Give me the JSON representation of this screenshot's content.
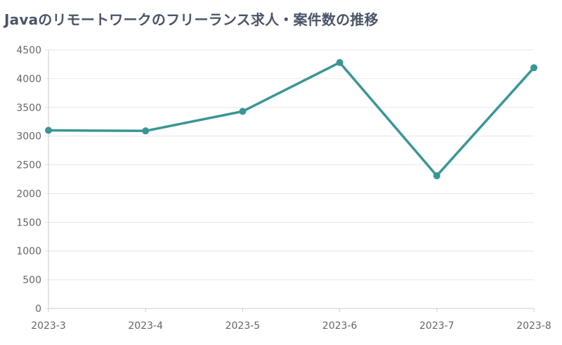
{
  "chart_data": {
    "type": "line",
    "title": "Javaのリモートワークのフリーランス求人・案件数の推移",
    "xlabel": "",
    "ylabel": "",
    "categories": [
      "2023-3",
      "2023-4",
      "2023-5",
      "2023-6",
      "2023-7",
      "2023-8"
    ],
    "series": [
      {
        "values": [
          3100,
          3090,
          3430,
          4280,
          2310,
          4190
        ]
      }
    ],
    "ylim": [
      0,
      4500
    ],
    "yticks": [
      0,
      500,
      1000,
      1500,
      2000,
      2500,
      3000,
      3500,
      4000,
      4500
    ],
    "grid": true,
    "legend": "none",
    "colors": {
      "line": "#3a9595",
      "grid": "#e6e6e6",
      "axis": "#cccccc",
      "tick_text": "#666666"
    }
  }
}
